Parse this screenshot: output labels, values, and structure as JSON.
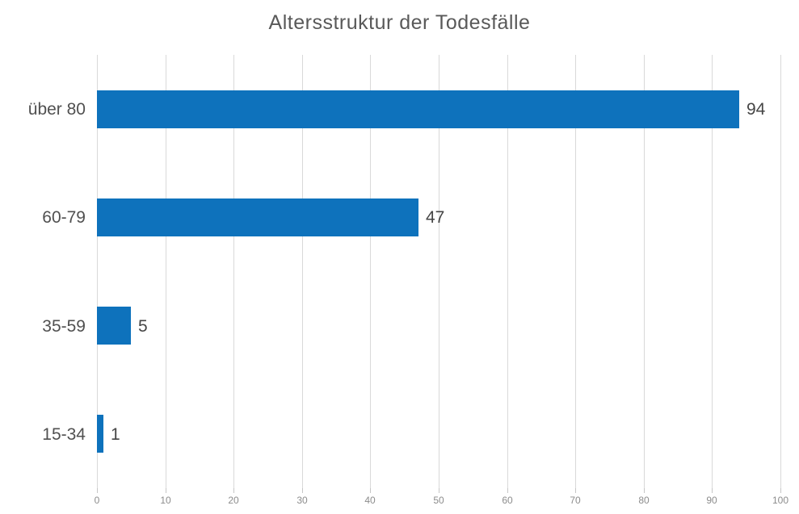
{
  "chart_data": {
    "type": "bar",
    "orientation": "horizontal",
    "title": "Altersstruktur der Todesfälle",
    "categories": [
      "über 80",
      "60-79",
      "35-59",
      "15-34"
    ],
    "values": [
      94,
      47,
      5,
      1
    ],
    "data_labels": [
      "94",
      "47",
      "5",
      "1"
    ],
    "xlabel": "",
    "ylabel": "",
    "xlim": [
      0,
      100
    ],
    "x_ticks": [
      "0",
      "10",
      "20",
      "30",
      "40",
      "50",
      "60",
      "70",
      "80",
      "90",
      "100"
    ],
    "grid": "vertical-only",
    "legend": "none",
    "colors": {
      "bar": "#0e72bc",
      "title_text": "#595959",
      "data_label_text": "#454545",
      "category_text": "#505050",
      "tick_text": "#8c8c8c",
      "gridline": "#d9d9d9",
      "background": "#ffffff"
    }
  }
}
